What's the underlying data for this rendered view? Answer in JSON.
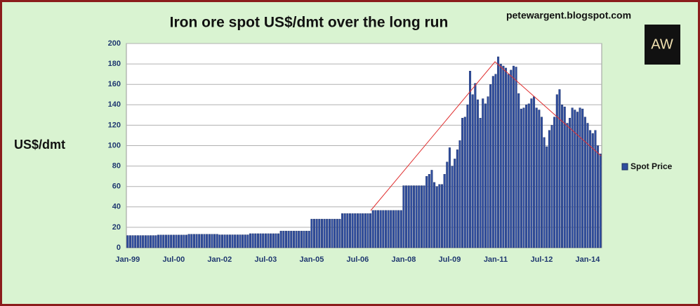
{
  "chart_data": {
    "type": "bar",
    "title": "Iron ore spot US$/dmt over the long run",
    "source": "petewargent.blogspot.com",
    "logo": "AW",
    "y_label": "US$/dmt",
    "color": "#2f4d9e",
    "grid": true,
    "legend": "right",
    "ylim": [
      0,
      200
    ],
    "yticks": [
      0,
      20,
      40,
      60,
      80,
      100,
      120,
      140,
      160,
      180,
      200
    ],
    "categories": [
      "Jan-99",
      null,
      null,
      null,
      null,
      null,
      null,
      null,
      null,
      null,
      null,
      null,
      null,
      null,
      null,
      null,
      null,
      null,
      "Jul-00",
      null,
      null,
      null,
      null,
      null,
      null,
      null,
      null,
      null,
      null,
      null,
      null,
      null,
      null,
      null,
      null,
      null,
      "Jan-02",
      null,
      null,
      null,
      null,
      null,
      null,
      null,
      null,
      null,
      null,
      null,
      null,
      null,
      null,
      null,
      null,
      null,
      "Jul-03",
      null,
      null,
      null,
      null,
      null,
      null,
      null,
      null,
      null,
      null,
      null,
      null,
      null,
      null,
      null,
      null,
      null,
      "Jan-05",
      null,
      null,
      null,
      null,
      null,
      null,
      null,
      null,
      null,
      null,
      null,
      null,
      null,
      null,
      null,
      null,
      null,
      "Jul-06",
      null,
      null,
      null,
      null,
      null,
      null,
      null,
      null,
      null,
      null,
      null,
      null,
      null,
      null,
      null,
      null,
      null,
      "Jan-08",
      null,
      null,
      null,
      null,
      null,
      null,
      null,
      null,
      null,
      null,
      null,
      null,
      null,
      null,
      null,
      null,
      null,
      "Jul-09",
      null,
      null,
      null,
      null,
      null,
      null,
      null,
      null,
      null,
      null,
      null,
      null,
      null,
      null,
      null,
      null,
      null,
      "Jan-11",
      null,
      null,
      null,
      null,
      null,
      null,
      null,
      null,
      null,
      null,
      null,
      null,
      null,
      null,
      null,
      null,
      null,
      "Jul-12",
      null,
      null,
      null,
      null,
      null,
      null,
      null,
      null,
      null,
      null,
      null,
      null,
      null,
      null,
      null,
      null,
      null,
      "Jan-14",
      null,
      null,
      null,
      null,
      null
    ],
    "series": [
      {
        "name": "Spot Price",
        "color": "#2f4d9e",
        "values": [
          12,
          12,
          12,
          12,
          12,
          12,
          12,
          12,
          12,
          12,
          12,
          12,
          12.5,
          12.5,
          12.5,
          12.5,
          12.5,
          12.5,
          12.5,
          12.5,
          12.5,
          12.5,
          12.5,
          12.5,
          13.2,
          13.2,
          13.2,
          13.2,
          13.2,
          13.2,
          13.2,
          13.2,
          13.2,
          13.2,
          13.2,
          13.2,
          12.7,
          12.7,
          12.7,
          12.7,
          12.7,
          12.7,
          12.7,
          12.7,
          12.7,
          12.7,
          12.7,
          12.7,
          13.8,
          13.8,
          13.8,
          13.8,
          13.8,
          13.8,
          13.8,
          13.8,
          13.8,
          13.8,
          13.8,
          13.8,
          16.4,
          16.4,
          16.4,
          16.4,
          16.4,
          16.4,
          16.4,
          16.4,
          16.4,
          16.4,
          16.4,
          16.4,
          28.1,
          28.1,
          28.1,
          28.1,
          28.1,
          28.1,
          28.1,
          28.1,
          28.1,
          28.1,
          28.1,
          28.1,
          33.5,
          33.5,
          33.5,
          33.5,
          33.5,
          33.5,
          33.5,
          33.5,
          33.5,
          33.5,
          33.5,
          33.5,
          36.6,
          36.6,
          36.6,
          36.6,
          36.6,
          36.6,
          36.6,
          36.6,
          36.6,
          36.6,
          36.6,
          36.6,
          60.8,
          60.8,
          60.8,
          60.8,
          60.8,
          60.8,
          60.8,
          60.8,
          60.8,
          70,
          72,
          76,
          64,
          60,
          62,
          62,
          72,
          84,
          98,
          80,
          87,
          96,
          105,
          127,
          128,
          140,
          173,
          150,
          161,
          145,
          127,
          146,
          141,
          148,
          160,
          168,
          170,
          187,
          180,
          178,
          176,
          170,
          174,
          178,
          177,
          151,
          136,
          137,
          140,
          141,
          146,
          148,
          137,
          135,
          128,
          108,
          99,
          115,
          120,
          128,
          150,
          155,
          140,
          138,
          122,
          127,
          137,
          135,
          133,
          137,
          136,
          128,
          122,
          115,
          112,
          115,
          100,
          92
        ]
      }
    ]
  }
}
